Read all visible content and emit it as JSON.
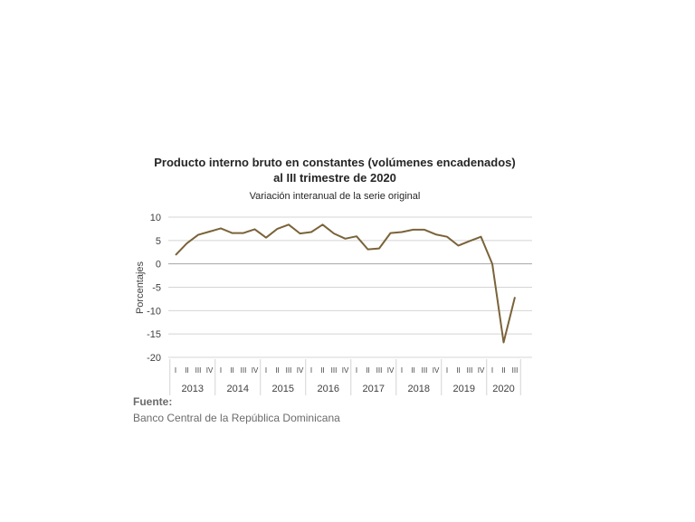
{
  "chart_data": {
    "type": "line",
    "title_line1": "Producto interno bruto en constantes (volúmenes encadenados)",
    "title_line2": "al III trimestre de 2020",
    "subtitle": "Variación interanual de la serie original",
    "ylabel": "Porcentajes",
    "xlabel": "",
    "ylim": [
      -20,
      10
    ],
    "yticks": [
      10,
      5,
      0,
      -5,
      -10,
      -15,
      -20
    ],
    "grid": true,
    "years": [
      "2013",
      "2014",
      "2015",
      "2016",
      "2017",
      "2018",
      "2019",
      "2020"
    ],
    "quarter_labels": [
      "I",
      "II",
      "III",
      "IV"
    ],
    "categories": [
      "2013-I",
      "2013-II",
      "2013-III",
      "2013-IV",
      "2014-I",
      "2014-II",
      "2014-III",
      "2014-IV",
      "2015-I",
      "2015-II",
      "2015-III",
      "2015-IV",
      "2016-I",
      "2016-II",
      "2016-III",
      "2016-IV",
      "2017-I",
      "2017-II",
      "2017-III",
      "2017-IV",
      "2018-I",
      "2018-II",
      "2018-III",
      "2018-IV",
      "2019-I",
      "2019-II",
      "2019-III",
      "2019-IV",
      "2020-I",
      "2020-II",
      "2020-III"
    ],
    "series": [
      {
        "values": [
          1.9,
          4.4,
          6.2,
          6.9,
          7.6,
          6.6,
          6.6,
          7.4,
          5.6,
          7.5,
          8.4,
          6.5,
          6.8,
          8.4,
          6.5,
          5.4,
          5.9,
          3.1,
          3.3,
          6.6,
          6.8,
          7.3,
          7.3,
          6.3,
          5.8,
          3.9,
          4.9,
          5.8,
          0.0,
          -16.8,
          -7.1
        ]
      }
    ]
  },
  "source": {
    "label": "Fuente:",
    "text": "Banco Central de la República Dominicana"
  },
  "colors": {
    "line": "#7a6339",
    "grid": "#d4d4d4",
    "zero_line": "#a6a6a6",
    "text": "#404040"
  }
}
